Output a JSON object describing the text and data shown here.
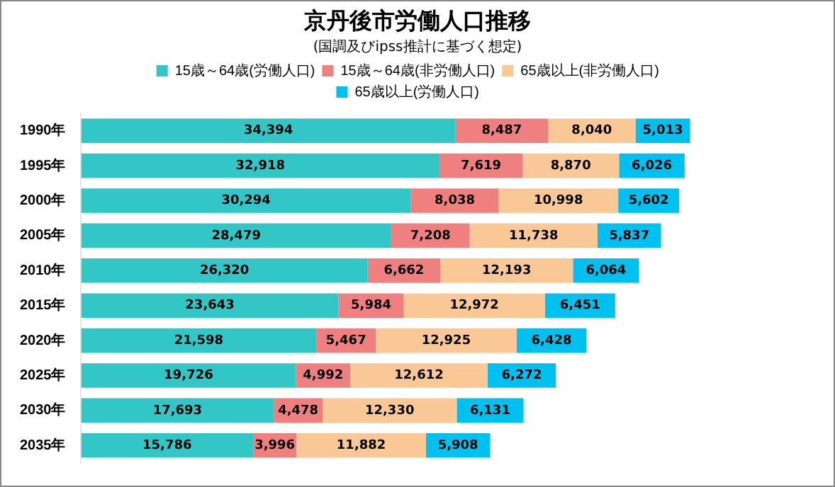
{
  "chart_data": {
    "type": "bar",
    "orientation": "horizontal",
    "stacked": true,
    "title": "京丹後市労働人口推移",
    "subtitle": "(国調及びipss推計に基づく想定)",
    "categories": [
      "1990年",
      "1995年",
      "2000年",
      "2005年",
      "2010年",
      "2015年",
      "2020年",
      "2025年",
      "2030年",
      "2035年"
    ],
    "series": [
      {
        "name": "15歳～64歳(労働人口)",
        "color": "#33c6c6",
        "values": [
          34394,
          32918,
          30294,
          28479,
          26320,
          23643,
          21598,
          19726,
          17693,
          15786
        ],
        "value_labels": [
          "34,394",
          "32,918",
          "30,294",
          "28,479",
          "26,320",
          "23,643",
          "21,598",
          "19,726",
          "17,693",
          "15,786"
        ]
      },
      {
        "name": "15歳～64歳(非労働人口)",
        "color": "#f08080",
        "values": [
          8487,
          7619,
          8038,
          7208,
          6662,
          5984,
          5467,
          4992,
          4478,
          3996
        ],
        "value_labels": [
          "8,487",
          "7,619",
          "8,038",
          "7,208",
          "6,662",
          "5,984",
          "5,467",
          "4,992",
          "4,478",
          "3,996"
        ]
      },
      {
        "name": "65歳以上(非労働人口)",
        "color": "#fac896",
        "values": [
          8040,
          8870,
          10998,
          11738,
          12193,
          12972,
          12925,
          12612,
          12330,
          11882
        ],
        "value_labels": [
          "8,040",
          "8,870",
          "10,998",
          "11,738",
          "12,193",
          "12,972",
          "12,925",
          "12,612",
          "12,330",
          "11,882"
        ]
      },
      {
        "name": "65歳以上(労働人口)",
        "color": "#00c0f0",
        "values": [
          5013,
          6026,
          5602,
          5837,
          6064,
          6451,
          6428,
          6272,
          6131,
          5908
        ],
        "value_labels": [
          "5,013",
          "6,026",
          "5,602",
          "5,837",
          "6,064",
          "6,451",
          "6,428",
          "6,272",
          "6,131",
          "5,908"
        ]
      }
    ],
    "legend": "top",
    "grid": false
  }
}
